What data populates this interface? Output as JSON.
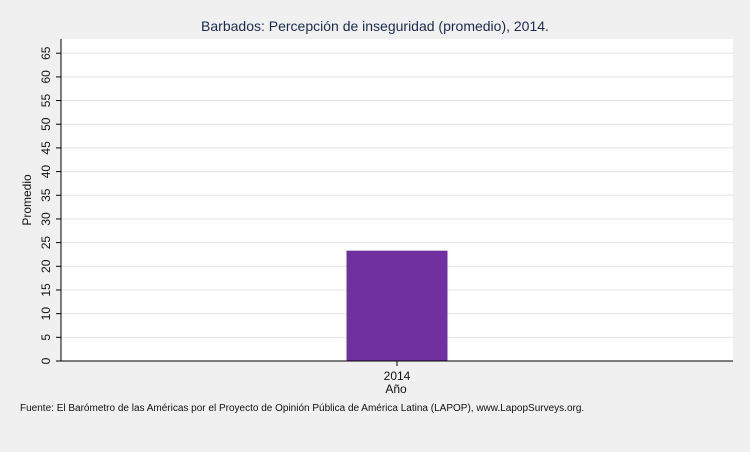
{
  "chart_data": {
    "type": "bar",
    "title": "Barbados: Percepción de inseguridad (promedio), 2014.",
    "xlabel": "Año",
    "ylabel": "Promedio",
    "categories": [
      "2014"
    ],
    "values": [
      23.3
    ],
    "ylim": [
      0,
      68
    ],
    "yticks": [
      0,
      5,
      10,
      15,
      20,
      25,
      30,
      35,
      40,
      45,
      50,
      55,
      60,
      65
    ],
    "grid": true,
    "legend": "none",
    "bar_color": "#7030a0",
    "source": "Fuente: El Barómetro de las Américas por el Proyecto de Opinión Pública de América Latina (LAPOP), www.LapopSurveys.org."
  }
}
